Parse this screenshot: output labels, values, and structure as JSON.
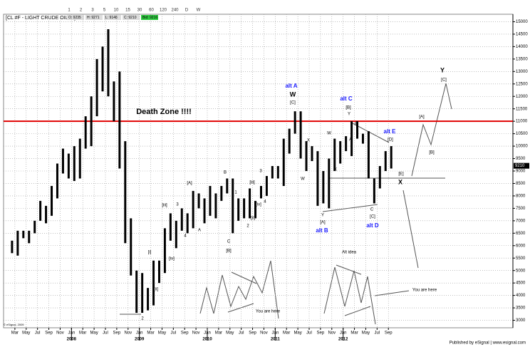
{
  "chart_data": {
    "type": "hlbar",
    "toolbar": [
      "1",
      "2",
      "3",
      "5",
      "10",
      "15",
      "30",
      "60",
      "120",
      "240",
      "D",
      "W"
    ],
    "title": "[CL #F - LIGHT CRUDE OIL,W]",
    "quote": [
      "O: 9235",
      "H: 9271",
      "L: 9148",
      "C: 9210"
    ],
    "bid": "Bid: 9216",
    "last_price": 9210,
    "x": [
      "2007-02",
      "2007-03",
      "2007-04",
      "2007-05",
      "2007-06",
      "2007-07",
      "2007-08",
      "2007-09",
      "2007-10",
      "2007-11",
      "2007-12",
      "2008-01",
      "2008-02",
      "2008-03",
      "2008-04",
      "2008-05",
      "2008-06",
      "2008-07",
      "2008-08",
      "2008-09",
      "2008-10",
      "2008-11",
      "2008-12",
      "2009-01",
      "2009-02",
      "2009-03",
      "2009-04",
      "2009-05",
      "2009-06",
      "2009-07",
      "2009-08",
      "2009-09",
      "2009-10",
      "2009-11",
      "2009-12",
      "2010-01",
      "2010-02",
      "2010-03",
      "2010-04",
      "2010-05",
      "2010-06",
      "2010-07",
      "2010-08",
      "2010-09",
      "2010-10",
      "2010-11",
      "2010-12",
      "2011-01",
      "2011-02",
      "2011-03",
      "2011-04",
      "2011-05",
      "2011-06",
      "2011-07",
      "2011-08",
      "2011-09",
      "2011-10",
      "2011-11",
      "2011-12",
      "2012-01",
      "2012-02",
      "2012-03",
      "2012-04",
      "2012-05",
      "2012-06",
      "2012-07",
      "2012-08",
      "2012-09"
    ],
    "high": [
      6200,
      6600,
      6600,
      6600,
      7000,
      7800,
      7600,
      8400,
      9300,
      9900,
      9700,
      10000,
      10300,
      11200,
      12000,
      13500,
      14000,
      14700,
      12600,
      13000,
      10200,
      7100,
      5000,
      4900,
      4300,
      5400,
      5400,
      6700,
      7300,
      7000,
      7500,
      7300,
      8200,
      8100,
      7900,
      8400,
      8100,
      8400,
      8700,
      8700,
      7900,
      7900,
      8300,
      7800,
      8400,
      8800,
      9200,
      9200,
      10300,
      10700,
      11400,
      11400,
      10200,
      10000,
      9800,
      9000,
      9500,
      10300,
      10200,
      10400,
      11000,
      11000,
      10500,
      10600,
      8700,
      9200,
      9800,
      10000
    ],
    "low": [
      5700,
      5600,
      6300,
      6100,
      6500,
      7000,
      6900,
      7200,
      7900,
      8900,
      8700,
      8600,
      8700,
      9900,
      10000,
      11200,
      12200,
      12000,
      11000,
      9100,
      6100,
      4800,
      3300,
      3300,
      3400,
      3600,
      4500,
      4900,
      6200,
      5900,
      6600,
      6500,
      6700,
      7500,
      6900,
      7200,
      7100,
      7800,
      8100,
      6500,
      7000,
      7100,
      7100,
      7100,
      7900,
      8000,
      8700,
      8700,
      8400,
      9700,
      10500,
      9500,
      9000,
      9400,
      7600,
      7700,
      7500,
      9000,
      9300,
      9800,
      9600,
      10300,
      10100,
      8700,
      7700,
      8300,
      9000,
      9100
    ],
    "color": "#000000",
    "xlim": [
      "2007-01",
      "2014-07"
    ],
    "xticks": [
      {
        "value": "2007-03",
        "label": "Mar"
      },
      {
        "value": "2007-05",
        "label": "May"
      },
      {
        "value": "2007-07",
        "label": "Jul"
      },
      {
        "value": "2007-09",
        "label": "Sep"
      },
      {
        "value": "2007-11",
        "label": "Nov"
      },
      {
        "value": "2008-01",
        "label": "Jan"
      },
      {
        "value": "2008-03",
        "label": "Mar"
      },
      {
        "value": "2008-05",
        "label": "May"
      },
      {
        "value": "2008-07",
        "label": "Jul"
      },
      {
        "value": "2008-09",
        "label": "Sep"
      },
      {
        "value": "2008-11",
        "label": "Nov"
      },
      {
        "value": "2009-01",
        "label": "Jan"
      },
      {
        "value": "2009-03",
        "label": "Mar"
      },
      {
        "value": "2009-05",
        "label": "May"
      },
      {
        "value": "2009-07",
        "label": "Jul"
      },
      {
        "value": "2009-09",
        "label": "Sep"
      },
      {
        "value": "2009-11",
        "label": "Nov"
      },
      {
        "value": "2010-01",
        "label": "Jan"
      },
      {
        "value": "2010-03",
        "label": "Mar"
      },
      {
        "value": "2010-05",
        "label": "May"
      },
      {
        "value": "2010-07",
        "label": "Jul"
      },
      {
        "value": "2010-09",
        "label": "Sep"
      },
      {
        "value": "2010-11",
        "label": "Nov"
      },
      {
        "value": "2011-01",
        "label": "Jan"
      },
      {
        "value": "2011-03",
        "label": "Mar"
      },
      {
        "value": "2011-05",
        "label": "May"
      },
      {
        "value": "2011-07",
        "label": "Jul"
      },
      {
        "value": "2011-09",
        "label": "Sep"
      },
      {
        "value": "2011-11",
        "label": "Nov"
      },
      {
        "value": "2012-01",
        "label": "Jan"
      },
      {
        "value": "2012-03",
        "label": "Mar"
      },
      {
        "value": "2012-05",
        "label": "May"
      },
      {
        "value": "2012-07",
        "label": "Jul"
      },
      {
        "value": "2012-09",
        "label": "Sep"
      }
    ],
    "years": [
      {
        "value": "2008-01",
        "label": "2008"
      },
      {
        "value": "2009-01",
        "label": "2009"
      },
      {
        "value": "2010-01",
        "label": "2010"
      },
      {
        "value": "2011-01",
        "label": "2011"
      },
      {
        "value": "2012-01",
        "label": "2012"
      }
    ],
    "ylim": [
      2700,
      15300
    ],
    "yticks": [
      3000,
      3500,
      4000,
      4500,
      5000,
      5500,
      6000,
      6500,
      7000,
      7500,
      8000,
      8500,
      9000,
      9500,
      10000,
      10500,
      11000,
      11500,
      12000,
      12500,
      13000,
      13500,
      14000,
      14500,
      15000
    ],
    "grid": true,
    "death_zone_level": 11000,
    "death_zone_color": "#e00000",
    "annotations": [
      "Death Zone !!!!",
      "alt A",
      "W",
      "[C]",
      "alt C",
      "[B]",
      "Y",
      "alt E",
      "[D]",
      "Y",
      "[C]",
      "[A]",
      "[B]",
      "[E]",
      "X",
      "[A]",
      "B",
      "A",
      "C",
      "[B]",
      "[iii]",
      "3",
      "4",
      "[i]",
      "[iv]",
      "[ii]",
      "2",
      "1",
      "2",
      "3",
      "4",
      "[iii]",
      "[iv]",
      "[ii]",
      "X",
      "W",
      "X",
      "W",
      "Y",
      "[A]",
      "alt B",
      "B",
      "A",
      "C",
      "[C]",
      "alt D",
      "Alt idea",
      "You are here",
      "You are here"
    ],
    "copyright": "© eSignal, 2009",
    "footer": "Published by eSignal | www.esignal.com"
  }
}
